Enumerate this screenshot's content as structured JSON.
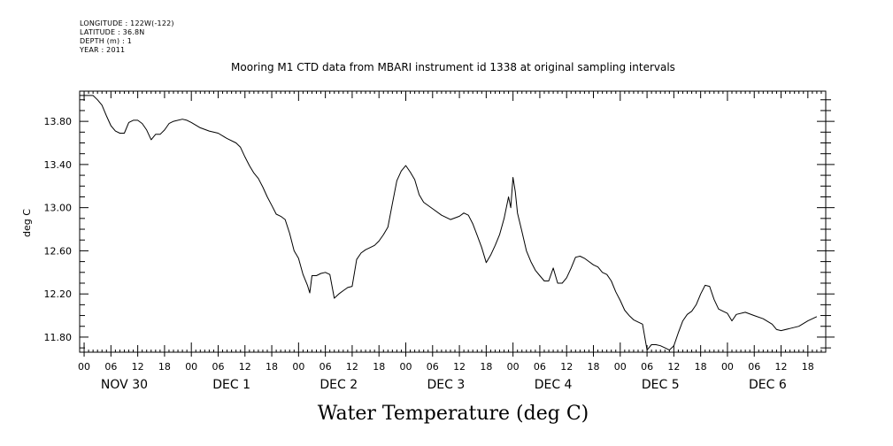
{
  "meta": {
    "longitude": "LONGITUDE : 122W(-122)",
    "latitude": "LATITUDE : 36.8N",
    "depth": "DEPTH (m) : 1",
    "year": "YEAR : 2011"
  },
  "chart_data": {
    "type": "line",
    "title": "Mooring M1 CTD data from MBARI instrument id 1338 at original sampling intervals",
    "xlabel": "Water Temperature (deg C)",
    "ylabel": "deg C",
    "ylim": [
      11.66,
      14.08
    ],
    "xlim_hours": [
      -1,
      166
    ],
    "yticks": [
      11.8,
      12.2,
      12.6,
      13.0,
      13.4,
      13.8
    ],
    "ytick_labels": [
      "11.80",
      "12.20",
      "12.60",
      "13.00",
      "13.40",
      "13.80"
    ],
    "hour_ticks": [
      "00",
      "06",
      "12",
      "18",
      "00",
      "06",
      "12",
      "18",
      "00",
      "06",
      "12",
      "18",
      "00",
      "06",
      "12",
      "18",
      "00",
      "06",
      "12",
      "18",
      "00",
      "06",
      "12",
      "18",
      "00",
      "06",
      "12",
      "18"
    ],
    "day_labels": [
      "NOV 30",
      "DEC  1",
      "DEC  2",
      "DEC  3",
      "DEC  4",
      "DEC  5",
      "DEC  6"
    ],
    "grid": false,
    "series": [
      {
        "values": [
          [
            -1,
            14.04
          ],
          [
            0,
            14.04
          ],
          [
            2,
            14.04
          ],
          [
            3,
            14.0
          ],
          [
            4,
            13.95
          ],
          [
            5,
            13.85
          ],
          [
            6,
            13.76
          ],
          [
            7,
            13.71
          ],
          [
            8,
            13.69
          ],
          [
            9,
            13.69
          ],
          [
            10,
            13.79
          ],
          [
            11,
            13.81
          ],
          [
            12,
            13.81
          ],
          [
            13,
            13.78
          ],
          [
            14,
            13.72
          ],
          [
            15,
            13.63
          ],
          [
            16,
            13.68
          ],
          [
            17,
            13.68
          ],
          [
            18,
            13.72
          ],
          [
            19,
            13.78
          ],
          [
            20,
            13.8
          ],
          [
            22,
            13.82
          ],
          [
            23,
            13.81
          ],
          [
            24,
            13.79
          ],
          [
            26,
            13.74
          ],
          [
            28,
            13.71
          ],
          [
            30,
            13.69
          ],
          [
            32,
            13.64
          ],
          [
            34,
            13.6
          ],
          [
            35,
            13.56
          ],
          [
            36,
            13.47
          ],
          [
            37,
            13.39
          ],
          [
            38,
            13.32
          ],
          [
            39,
            13.27
          ],
          [
            40,
            13.19
          ],
          [
            41,
            13.1
          ],
          [
            42,
            13.02
          ],
          [
            43,
            12.94
          ],
          [
            44,
            12.92
          ],
          [
            45,
            12.89
          ],
          [
            46,
            12.76
          ],
          [
            47,
            12.6
          ],
          [
            48,
            12.53
          ],
          [
            49,
            12.38
          ],
          [
            50,
            12.28
          ],
          [
            50.5,
            12.21
          ],
          [
            51,
            12.37
          ],
          [
            52,
            12.37
          ],
          [
            53,
            12.39
          ],
          [
            54,
            12.4
          ],
          [
            55,
            12.38
          ],
          [
            56,
            12.16
          ],
          [
            57,
            12.2
          ],
          [
            58,
            12.23
          ],
          [
            59,
            12.26
          ],
          [
            60,
            12.27
          ],
          [
            61,
            12.52
          ],
          [
            62,
            12.58
          ],
          [
            63,
            12.61
          ],
          [
            64,
            12.63
          ],
          [
            65,
            12.65
          ],
          [
            66,
            12.69
          ],
          [
            67,
            12.75
          ],
          [
            68,
            12.82
          ],
          [
            69,
            13.04
          ],
          [
            70,
            13.25
          ],
          [
            71,
            13.34
          ],
          [
            72,
            13.39
          ],
          [
            73,
            13.33
          ],
          [
            74,
            13.26
          ],
          [
            75,
            13.12
          ],
          [
            76,
            13.05
          ],
          [
            78,
            12.99
          ],
          [
            80,
            12.93
          ],
          [
            82,
            12.89
          ],
          [
            84,
            12.92
          ],
          [
            85,
            12.95
          ],
          [
            86,
            12.93
          ],
          [
            87,
            12.85
          ],
          [
            88,
            12.74
          ],
          [
            89,
            12.63
          ],
          [
            90,
            12.49
          ],
          [
            91,
            12.56
          ],
          [
            92,
            12.65
          ],
          [
            93,
            12.75
          ],
          [
            94,
            12.9
          ],
          [
            95,
            13.1
          ],
          [
            95.5,
            13.0
          ],
          [
            96,
            13.28
          ],
          [
            96.5,
            13.15
          ],
          [
            97,
            12.95
          ],
          [
            98,
            12.78
          ],
          [
            99,
            12.6
          ],
          [
            100,
            12.5
          ],
          [
            101,
            12.42
          ],
          [
            102,
            12.37
          ],
          [
            103,
            12.32
          ],
          [
            104,
            12.32
          ],
          [
            105,
            12.44
          ],
          [
            106,
            12.3
          ],
          [
            107,
            12.3
          ],
          [
            108,
            12.35
          ],
          [
            109,
            12.44
          ],
          [
            110,
            12.54
          ],
          [
            111,
            12.55
          ],
          [
            112,
            12.53
          ],
          [
            113,
            12.5
          ],
          [
            114,
            12.47
          ],
          [
            115,
            12.45
          ],
          [
            116,
            12.4
          ],
          [
            117,
            12.38
          ],
          [
            118,
            12.32
          ],
          [
            119,
            12.22
          ],
          [
            120,
            12.14
          ],
          [
            121,
            12.05
          ],
          [
            122,
            12.0
          ],
          [
            123,
            11.96
          ],
          [
            124,
            11.94
          ],
          [
            125,
            11.92
          ],
          [
            126,
            11.68
          ],
          [
            127,
            11.73
          ],
          [
            128,
            11.73
          ],
          [
            129,
            11.72
          ],
          [
            130,
            11.7
          ],
          [
            131,
            11.68
          ],
          [
            132,
            11.72
          ],
          [
            133,
            11.84
          ],
          [
            134,
            11.95
          ],
          [
            135,
            12.01
          ],
          [
            136,
            12.04
          ],
          [
            137,
            12.1
          ],
          [
            138,
            12.2
          ],
          [
            139,
            12.28
          ],
          [
            140,
            12.27
          ],
          [
            141,
            12.15
          ],
          [
            142,
            12.06
          ],
          [
            143,
            12.04
          ],
          [
            144,
            12.02
          ],
          [
            145,
            11.95
          ],
          [
            146,
            12.01
          ],
          [
            148,
            12.03
          ],
          [
            150,
            12.0
          ],
          [
            152,
            11.97
          ],
          [
            154,
            11.92
          ],
          [
            155,
            11.87
          ],
          [
            156,
            11.86
          ],
          [
            158,
            11.88
          ],
          [
            160,
            11.9
          ],
          [
            162,
            11.95
          ],
          [
            164,
            11.99
          ]
        ]
      }
    ]
  }
}
